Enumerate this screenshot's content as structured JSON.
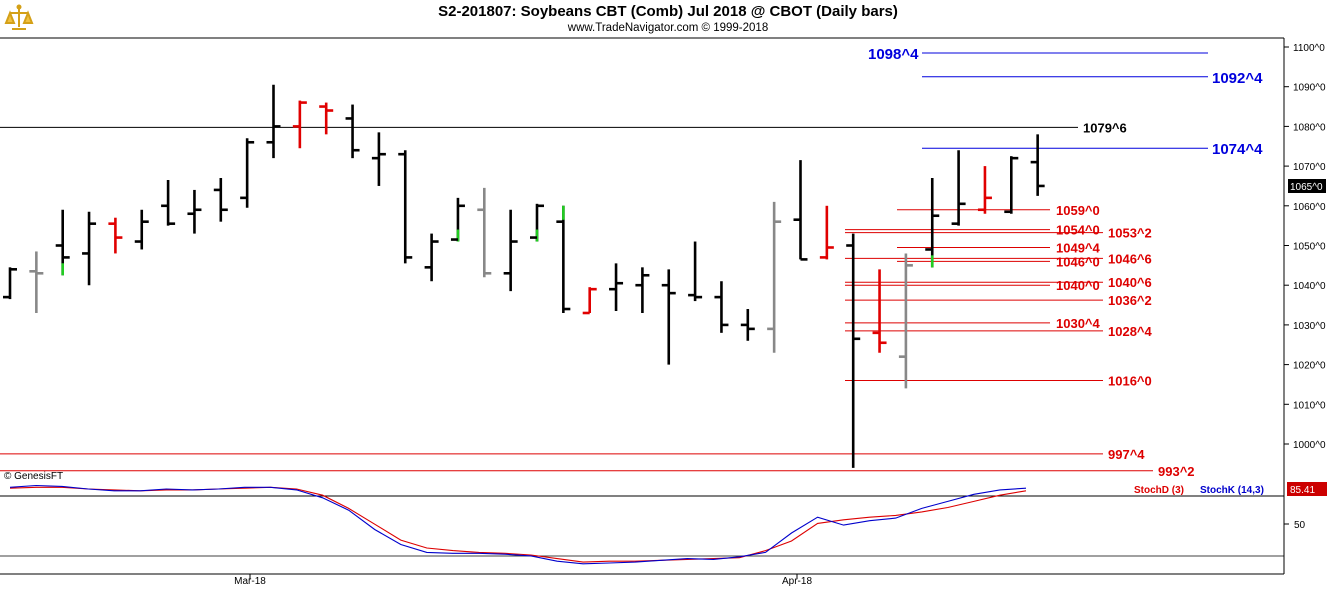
{
  "header": {
    "title": "S2-201807:  Soybeans CBT (Comb) Jul 2018 @ CBOT  (Daily bars)",
    "subtitle": "www.TradeNavigator.com © 1999-2018",
    "logo_icon": "trade-navigator-logo-icon"
  },
  "price_panel": {
    "copyright": "© GenesisFT",
    "current_price_label": "1065^0",
    "y_ticks": [
      "1100^0",
      "1090^0",
      "1080^0",
      "1070^0",
      "1060^0",
      "1050^0",
      "1040^0",
      "1030^0",
      "1020^0",
      "1010^0",
      "1000^0"
    ]
  },
  "indicator_panel": {
    "stochd_label": "StochD (3)",
    "stochk_label": "StochK (14,3)",
    "current_value_label": "85.41",
    "y_tick": "50"
  },
  "x_labels": [
    "Mar-18",
    "Apr-18"
  ],
  "colors": {
    "up_black": "#000000",
    "red_bar": "#e00000",
    "green_bar": "#22cc22",
    "gray_bar": "#888888",
    "blue_level": "#0000dd",
    "red_level": "#dd0000",
    "stochd": "#dd0000",
    "stochk": "#0000cc"
  },
  "chart_data": {
    "type": "bar",
    "title": "S2-201807:  Soybeans CBT (Comb) Jul 2018 @ CBOT  (Daily bars)",
    "ylim": [
      991,
      1101
    ],
    "bars": [
      {
        "h": 1044.5,
        "l": 1036.5,
        "o": 1037.0,
        "c": 1044.0,
        "color": "black"
      },
      {
        "h": 1048.5,
        "l": 1033.0,
        "o": 1043.5,
        "c": 1043.0,
        "color": "gray"
      },
      {
        "h": 1059.0,
        "l": 1042.5,
        "o": 1050.0,
        "c": 1047.0,
        "color": "black",
        "lowColor": "green"
      },
      {
        "h": 1058.5,
        "l": 1040.0,
        "o": 1048.0,
        "c": 1055.5,
        "color": "black"
      },
      {
        "h": 1057.0,
        "l": 1048.0,
        "o": 1055.5,
        "c": 1052.0,
        "color": "red"
      },
      {
        "h": 1059.0,
        "l": 1049.0,
        "o": 1051.0,
        "c": 1056.0,
        "color": "black"
      },
      {
        "h": 1066.5,
        "l": 1055.0,
        "o": 1060.0,
        "c": 1055.5,
        "color": "black"
      },
      {
        "h": 1064.0,
        "l": 1053.0,
        "o": 1058.0,
        "c": 1059.0,
        "color": "black"
      },
      {
        "h": 1067.0,
        "l": 1056.0,
        "o": 1064.0,
        "c": 1059.0,
        "color": "black"
      },
      {
        "h": 1077.0,
        "l": 1059.5,
        "o": 1062.0,
        "c": 1076.0,
        "color": "black"
      },
      {
        "h": 1090.5,
        "l": 1072.0,
        "o": 1076.0,
        "c": 1080.0,
        "color": "black"
      },
      {
        "h": 1086.5,
        "l": 1074.5,
        "o": 1080.0,
        "c": 1086.0,
        "color": "red"
      },
      {
        "h": 1086.0,
        "l": 1078.0,
        "o": 1085.0,
        "c": 1084.0,
        "color": "red"
      },
      {
        "h": 1085.5,
        "l": 1072.0,
        "o": 1082.0,
        "c": 1074.0,
        "color": "black"
      },
      {
        "h": 1078.5,
        "l": 1065.0,
        "o": 1072.0,
        "c": 1073.0,
        "color": "black"
      },
      {
        "h": 1074.0,
        "l": 1045.5,
        "o": 1073.0,
        "c": 1047.0,
        "color": "black"
      },
      {
        "h": 1053.0,
        "l": 1041.0,
        "o": 1044.5,
        "c": 1051.0,
        "color": "black"
      },
      {
        "h": 1062.0,
        "l": 1051.0,
        "o": 1051.5,
        "c": 1060.0,
        "color": "black",
        "lowColor": "green"
      },
      {
        "h": 1064.5,
        "l": 1042.0,
        "o": 1059.0,
        "c": 1043.0,
        "color": "gray"
      },
      {
        "h": 1059.0,
        "l": 1038.5,
        "o": 1043.0,
        "c": 1051.0,
        "color": "black"
      },
      {
        "h": 1060.5,
        "l": 1051.0,
        "o": 1052.0,
        "c": 1060.0,
        "color": "black",
        "lowColor": "green"
      },
      {
        "h": 1060.0,
        "l": 1033.0,
        "o": 1056.0,
        "c": 1034.0,
        "color": "black",
        "highColor": "green"
      },
      {
        "h": 1039.5,
        "l": 1033.0,
        "o": 1033.0,
        "c": 1039.0,
        "color": "red"
      },
      {
        "h": 1045.5,
        "l": 1033.5,
        "o": 1039.0,
        "c": 1040.5,
        "color": "black"
      },
      {
        "h": 1044.5,
        "l": 1033.0,
        "o": 1040.0,
        "c": 1042.5,
        "color": "black"
      },
      {
        "h": 1044.0,
        "l": 1020.0,
        "o": 1040.0,
        "c": 1038.0,
        "color": "black"
      },
      {
        "h": 1051.0,
        "l": 1036.0,
        "o": 1037.5,
        "c": 1037.0,
        "color": "black"
      },
      {
        "h": 1041.0,
        "l": 1028.0,
        "o": 1037.0,
        "c": 1030.0,
        "color": "black"
      },
      {
        "h": 1034.0,
        "l": 1026.0,
        "o": 1030.0,
        "c": 1029.0,
        "color": "black"
      },
      {
        "h": 1061.0,
        "l": 1023.0,
        "o": 1029.0,
        "c": 1056.0,
        "color": "gray"
      },
      {
        "h": 1071.5,
        "l": 1046.5,
        "o": 1056.5,
        "c": 1046.5,
        "color": "black"
      },
      {
        "h": 1060.0,
        "l": 1046.5,
        "o": 1047.0,
        "c": 1049.5,
        "color": "red"
      },
      {
        "h": 1053.0,
        "l": 994.0,
        "o": 1050.0,
        "c": 1026.5,
        "color": "black"
      },
      {
        "h": 1044.0,
        "l": 1023.0,
        "o": 1028.0,
        "c": 1025.5,
        "color": "red"
      },
      {
        "h": 1048.0,
        "l": 1014.0,
        "o": 1022.0,
        "c": 1045.0,
        "color": "gray"
      },
      {
        "h": 1067.0,
        "l": 1044.5,
        "o": 1049.0,
        "c": 1057.5,
        "color": "black",
        "lowColor": "green"
      },
      {
        "h": 1074.0,
        "l": 1055.0,
        "o": 1055.5,
        "c": 1060.5,
        "color": "black"
      },
      {
        "h": 1070.0,
        "l": 1058.0,
        "o": 1059.0,
        "c": 1062.0,
        "color": "red"
      },
      {
        "h": 1072.5,
        "l": 1058.0,
        "o": 1058.5,
        "c": 1072.0,
        "color": "black"
      },
      {
        "h": 1078.0,
        "l": 1062.5,
        "o": 1071.0,
        "c": 1065.0,
        "color": "black"
      }
    ],
    "levels": [
      {
        "value": 1098.5,
        "label": "1098^4",
        "color": "blue",
        "side": "left"
      },
      {
        "value": 1092.5,
        "label": "1092^4",
        "color": "blue",
        "side": "right"
      },
      {
        "value": 1079.75,
        "label": "1079^6",
        "color": "black",
        "side": "right"
      },
      {
        "value": 1074.5,
        "label": "1074^4",
        "color": "blue",
        "side": "right"
      },
      {
        "value": 1059.0,
        "label": "1059^0",
        "color": "red",
        "side": "left"
      },
      {
        "value": 1054.0,
        "label": "1054^0",
        "color": "red",
        "side": "left"
      },
      {
        "value": 1053.25,
        "label": "1053^2",
        "color": "red",
        "side": "right"
      },
      {
        "value": 1049.5,
        "label": "1049^4",
        "color": "red",
        "side": "left"
      },
      {
        "value": 1046.75,
        "label": "1046^6",
        "color": "red",
        "side": "right"
      },
      {
        "value": 1046.0,
        "label": "1046^0",
        "color": "red",
        "side": "left"
      },
      {
        "value": 1040.75,
        "label": "1040^6",
        "color": "red",
        "side": "right"
      },
      {
        "value": 1040.0,
        "label": "1040^0",
        "color": "red",
        "side": "left"
      },
      {
        "value": 1036.25,
        "label": "1036^2",
        "color": "red",
        "side": "right"
      },
      {
        "value": 1030.5,
        "label": "1030^4",
        "color": "red",
        "side": "left"
      },
      {
        "value": 1028.5,
        "label": "1028^4",
        "color": "red",
        "side": "right"
      },
      {
        "value": 1016.0,
        "label": "1016^0",
        "color": "red",
        "side": "right"
      },
      {
        "value": 997.5,
        "label": "997^4",
        "color": "red",
        "side": "right"
      },
      {
        "value": 993.25,
        "label": "993^2",
        "color": "red",
        "side": "right"
      }
    ],
    "stochastic": {
      "ylim": [
        0,
        100
      ],
      "stochK": [
        94,
        96,
        95,
        92,
        90,
        90,
        92,
        91,
        92,
        94,
        94,
        91,
        82,
        68,
        46,
        29,
        20,
        19,
        19,
        18,
        16,
        10,
        7,
        8,
        9,
        11,
        13,
        12,
        15,
        20,
        42,
        60,
        51,
        56,
        59,
        70,
        78,
        86,
        91,
        93
      ],
      "stochD": [
        93,
        94,
        94,
        92,
        91,
        90,
        91,
        91,
        92,
        93,
        94,
        92,
        85,
        70,
        52,
        34,
        25,
        22,
        20,
        19,
        17,
        13,
        9,
        10,
        10,
        11,
        12,
        13,
        14,
        22,
        33,
        53,
        57,
        60,
        62,
        66,
        71,
        78,
        85,
        90
      ]
    }
  }
}
